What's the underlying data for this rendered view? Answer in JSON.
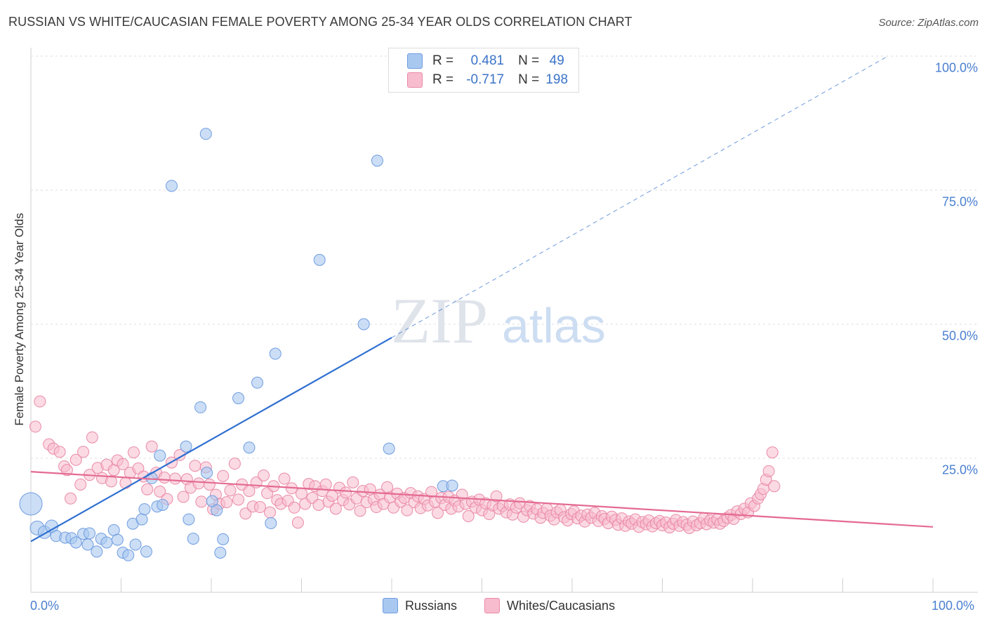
{
  "title": "RUSSIAN VS WHITE/CAUCASIAN FEMALE POVERTY AMONG 25-34 YEAR OLDS CORRELATION CHART",
  "source": "Source: ZipAtlas.com",
  "watermark": {
    "zip": "ZIP",
    "atlas": "atlas"
  },
  "legend": {
    "r_label": "R =",
    "n_label": "N =",
    "rows": [
      {
        "series": "Russians",
        "r": "0.481",
        "n": "49",
        "color": "#a9c8f0",
        "border": "#6f9ce0"
      },
      {
        "series": "Whites/Caucasians",
        "r": "-0.717",
        "n": "198",
        "color": "#f7bccd",
        "border": "#ea8aa6"
      }
    ]
  },
  "bottom_legend": [
    "Russians",
    "Whites/Caucasians"
  ],
  "colors": {
    "russian_fill": "#a9c8f0",
    "russian_stroke": "#6f9ce0",
    "russian_line": "#2f6fd0",
    "white_fill": "#f7bccd",
    "white_stroke": "#ea8aa6",
    "white_line": "#e46a92",
    "tick_text": "#4a7fd0"
  },
  "chart_data": {
    "type": "scatter",
    "title": "RUSSIAN VS WHITE/CAUCASIAN FEMALE POVERTY AMONG 25-34 YEAR OLDS CORRELATION CHART",
    "xlabel": "",
    "ylabel": "Female Poverty Among 25-34 Year Olds",
    "xlim": [
      0,
      100
    ],
    "ylim": [
      0,
      100
    ],
    "x_tick_labels": [
      "0.0%",
      "100.0%"
    ],
    "y_tick_labels": [
      {
        "value": 100,
        "label": "100.0%"
      },
      {
        "value": 75,
        "label": "75.0%"
      },
      {
        "value": 50,
        "label": "50.0%"
      },
      {
        "value": 25,
        "label": "25.0%"
      }
    ],
    "grid": "horizontal dashed",
    "legend_position": "top-center",
    "series": [
      {
        "name": "Russians",
        "trend": {
          "x": [
            0,
            40
          ],
          "y": [
            9.5,
            47.5
          ],
          "dashed_extension_to": [
            95,
            100
          ]
        },
        "points": [
          [
            0,
            16.5,
            16
          ],
          [
            0.7,
            12,
            10
          ],
          [
            1.5,
            11.2,
            9
          ],
          [
            2.3,
            12.3,
            9
          ],
          [
            2.8,
            10.5,
            8
          ],
          [
            3.8,
            10.2,
            8
          ],
          [
            4.5,
            10.1,
            8
          ],
          [
            5,
            9.3,
            8
          ],
          [
            5.8,
            10.9,
            8
          ],
          [
            6.3,
            8.9,
            8
          ],
          [
            6.5,
            11,
            8
          ],
          [
            7.3,
            7.6,
            8
          ],
          [
            7.8,
            10,
            8
          ],
          [
            8.4,
            9.3,
            8
          ],
          [
            9.2,
            11.6,
            8
          ],
          [
            9.6,
            9.8,
            8
          ],
          [
            10.2,
            7.4,
            8
          ],
          [
            10.8,
            6.9,
            8
          ],
          [
            11.3,
            12.8,
            8
          ],
          [
            11.6,
            8.9,
            8
          ],
          [
            12.3,
            13.6,
            8
          ],
          [
            12.6,
            15.5,
            8
          ],
          [
            12.8,
            7.6,
            8
          ],
          [
            13.4,
            21.3,
            8
          ],
          [
            14,
            16,
            8
          ],
          [
            14.3,
            25.5,
            8
          ],
          [
            14.6,
            16.3,
            8
          ],
          [
            15.6,
            75.8,
            8
          ],
          [
            17.2,
            27.2,
            8
          ],
          [
            17.5,
            13.6,
            8
          ],
          [
            18,
            10,
            8
          ],
          [
            18.8,
            34.5,
            8
          ],
          [
            19.4,
            85.5,
            8
          ],
          [
            19.5,
            22.3,
            8
          ],
          [
            20.1,
            17,
            8
          ],
          [
            20.6,
            15.3,
            8
          ],
          [
            21,
            7.4,
            8
          ],
          [
            21.3,
            9.9,
            8
          ],
          [
            23,
            36.2,
            8
          ],
          [
            24.2,
            27,
            8
          ],
          [
            25.1,
            39.1,
            8
          ],
          [
            26.6,
            12.9,
            8
          ],
          [
            27.1,
            44.5,
            8
          ],
          [
            32,
            62,
            8
          ],
          [
            36.9,
            50,
            8
          ],
          [
            38.4,
            80.5,
            8
          ],
          [
            45.7,
            19.8,
            8
          ],
          [
            46.7,
            19.9,
            8
          ],
          [
            39.7,
            26.8,
            8
          ]
        ]
      },
      {
        "name": "Whites/Caucasians",
        "trend": {
          "x": [
            0,
            100
          ],
          "y": [
            22.5,
            12.2
          ]
        },
        "points": [
          [
            0.5,
            30.9
          ],
          [
            1,
            35.6
          ],
          [
            2,
            27.6
          ],
          [
            2.5,
            26.8
          ],
          [
            3.2,
            26.2
          ],
          [
            3.7,
            23.5
          ],
          [
            4,
            22.8
          ],
          [
            4.4,
            17.5
          ],
          [
            5,
            24.7
          ],
          [
            5.5,
            20.1
          ],
          [
            5.8,
            26.2
          ],
          [
            6.5,
            21.9
          ],
          [
            6.8,
            28.9
          ],
          [
            7.4,
            23.2
          ],
          [
            7.9,
            21.3
          ],
          [
            8.4,
            23.8
          ],
          [
            8.9,
            20.7
          ],
          [
            9.2,
            22.8
          ],
          [
            9.6,
            24.6
          ],
          [
            10.2,
            23.9
          ],
          [
            10.5,
            20.4
          ],
          [
            11,
            22.3
          ],
          [
            11.4,
            26.1
          ],
          [
            11.9,
            23.1
          ],
          [
            12.5,
            21.6
          ],
          [
            12.9,
            19.2
          ],
          [
            13.4,
            27.2
          ],
          [
            13.9,
            22.3
          ],
          [
            14.3,
            18.8
          ],
          [
            14.8,
            21.4
          ],
          [
            15.1,
            17.4
          ],
          [
            15.6,
            24.2
          ],
          [
            16,
            21.2
          ],
          [
            16.5,
            25.6
          ],
          [
            16.9,
            17.8
          ],
          [
            17.3,
            21.1
          ],
          [
            17.7,
            19.5
          ],
          [
            18.2,
            23.6
          ],
          [
            18.6,
            20.3
          ],
          [
            18.9,
            16.9
          ],
          [
            19.4,
            23.3
          ],
          [
            19.8,
            20.1
          ],
          [
            20.2,
            15.5
          ],
          [
            20.5,
            18.2
          ],
          [
            20.9,
            16.5
          ],
          [
            21.3,
            21.7
          ],
          [
            21.7,
            16.8
          ],
          [
            22.1,
            19
          ],
          [
            22.6,
            24
          ],
          [
            23,
            17.3
          ],
          [
            23.4,
            20.1
          ],
          [
            23.8,
            14.7
          ],
          [
            24.2,
            18.9
          ],
          [
            24.6,
            16
          ],
          [
            25,
            20.5
          ],
          [
            25.4,
            15.9
          ],
          [
            25.8,
            21.8
          ],
          [
            26.2,
            18.5
          ],
          [
            26.5,
            14.9
          ],
          [
            26.9,
            19.8
          ],
          [
            27.3,
            17.2
          ],
          [
            27.7,
            16.5
          ],
          [
            28.1,
            21.2
          ],
          [
            28.5,
            17.1
          ],
          [
            28.9,
            19.4
          ],
          [
            29.2,
            15.8
          ],
          [
            29.6,
            13
          ],
          [
            30,
            18.4
          ],
          [
            30.4,
            16.5
          ],
          [
            30.8,
            20.2
          ],
          [
            31.2,
            17.6
          ],
          [
            31.5,
            19.8
          ],
          [
            31.9,
            16.3
          ],
          [
            32.3,
            18.9
          ],
          [
            32.7,
            20.1
          ],
          [
            33,
            16.9
          ],
          [
            33.4,
            18
          ],
          [
            33.8,
            15.6
          ],
          [
            34.2,
            19.5
          ],
          [
            34.6,
            17.2
          ],
          [
            34.9,
            18.6
          ],
          [
            35.3,
            16.4
          ],
          [
            35.7,
            20.5
          ],
          [
            36.1,
            17.5
          ],
          [
            36.5,
            15.2
          ],
          [
            36.8,
            18.9
          ],
          [
            37.2,
            16.8
          ],
          [
            37.6,
            19.2
          ],
          [
            38,
            17.3
          ],
          [
            38.3,
            15.9
          ],
          [
            38.7,
            18.2
          ],
          [
            39.1,
            16.5
          ],
          [
            39.5,
            19.6
          ],
          [
            39.8,
            17.7
          ],
          [
            40.2,
            15.8
          ],
          [
            40.6,
            18.4
          ],
          [
            41,
            16.9
          ],
          [
            41.4,
            17.6
          ],
          [
            41.7,
            15.3
          ],
          [
            42.1,
            18.5
          ],
          [
            42.5,
            16.8
          ],
          [
            42.9,
            17.9
          ],
          [
            43.2,
            15.7
          ],
          [
            43.6,
            17.4
          ],
          [
            44,
            16.2
          ],
          [
            44.4,
            18.7
          ],
          [
            44.8,
            16.9
          ],
          [
            45.1,
            14.8
          ],
          [
            45.5,
            17.6
          ],
          [
            45.9,
            16.3
          ],
          [
            46.3,
            17.8
          ],
          [
            46.6,
            15.6
          ],
          [
            47,
            17.1
          ],
          [
            47.4,
            16
          ],
          [
            47.8,
            18.2
          ],
          [
            48.2,
            16.5
          ],
          [
            48.5,
            14.2
          ],
          [
            48.9,
            16.9
          ],
          [
            49.3,
            15.8
          ],
          [
            49.7,
            17.3
          ],
          [
            50,
            15.3
          ],
          [
            50.4,
            16.6
          ],
          [
            50.8,
            14.6
          ],
          [
            51.2,
            16.2
          ],
          [
            51.6,
            17.9
          ],
          [
            51.9,
            15.6
          ],
          [
            52.3,
            16.1
          ],
          [
            52.7,
            14.9
          ],
          [
            53.1,
            16.4
          ],
          [
            53.4,
            14.5
          ],
          [
            53.8,
            15.8
          ],
          [
            54.2,
            16.6
          ],
          [
            54.6,
            14.1
          ],
          [
            55,
            15.3
          ],
          [
            55.3,
            16.1
          ],
          [
            55.7,
            14.7
          ],
          [
            56.1,
            15.5
          ],
          [
            56.5,
            13.9
          ],
          [
            56.8,
            14.8
          ],
          [
            57.2,
            15.6
          ],
          [
            57.6,
            14.3
          ],
          [
            58,
            13.6
          ],
          [
            58.3,
            14.9
          ],
          [
            58.7,
            15.4
          ],
          [
            59.1,
            14
          ],
          [
            59.5,
            13.4
          ],
          [
            59.9,
            14.6
          ],
          [
            60.2,
            15.1
          ],
          [
            60.6,
            13.8
          ],
          [
            61,
            14.3
          ],
          [
            61.4,
            13.2
          ],
          [
            61.7,
            14.5
          ],
          [
            62.1,
            13.9
          ],
          [
            62.5,
            14.8
          ],
          [
            62.9,
            13.3
          ],
          [
            63.3,
            14.2
          ],
          [
            63.6,
            13.7
          ],
          [
            64,
            12.9
          ],
          [
            64.4,
            14.1
          ],
          [
            64.8,
            13.5
          ],
          [
            65.1,
            12.6
          ],
          [
            65.5,
            13.8
          ],
          [
            65.9,
            12.4
          ],
          [
            66.3,
            13.2
          ],
          [
            66.6,
            12.8
          ],
          [
            67,
            13.6
          ],
          [
            67.4,
            12.2
          ],
          [
            67.8,
            13.1
          ],
          [
            68.2,
            12.7
          ],
          [
            68.5,
            13.4
          ],
          [
            68.9,
            12.3
          ],
          [
            69.3,
            12.9
          ],
          [
            69.7,
            13.3
          ],
          [
            70,
            12.5
          ],
          [
            70.4,
            13
          ],
          [
            70.8,
            12.1
          ],
          [
            71.2,
            12.8
          ],
          [
            71.5,
            13.5
          ],
          [
            71.9,
            12.4
          ],
          [
            72.3,
            13.1
          ],
          [
            72.7,
            12.6
          ],
          [
            73,
            12
          ],
          [
            73.4,
            13.2
          ],
          [
            73.8,
            12.5
          ],
          [
            74.2,
            12.9
          ],
          [
            74.6,
            13.8
          ],
          [
            74.9,
            12.7
          ],
          [
            75.3,
            13.4
          ],
          [
            75.7,
            13
          ],
          [
            76.1,
            13.6
          ],
          [
            76.4,
            12.8
          ],
          [
            76.8,
            13.3
          ],
          [
            77.2,
            13.9
          ],
          [
            77.6,
            14.4
          ],
          [
            77.9,
            13.7
          ],
          [
            78.3,
            15.1
          ],
          [
            78.7,
            14.6
          ],
          [
            79.1,
            15.6
          ],
          [
            79.5,
            14.9
          ],
          [
            79.8,
            16.6
          ],
          [
            80.2,
            16.1
          ],
          [
            80.6,
            17.5
          ],
          [
            80.9,
            18.3
          ],
          [
            81.2,
            19.3
          ],
          [
            81.5,
            21
          ],
          [
            81.8,
            22.6
          ],
          [
            82.2,
            26.1
          ],
          [
            82.4,
            19.8
          ]
        ]
      }
    ]
  }
}
